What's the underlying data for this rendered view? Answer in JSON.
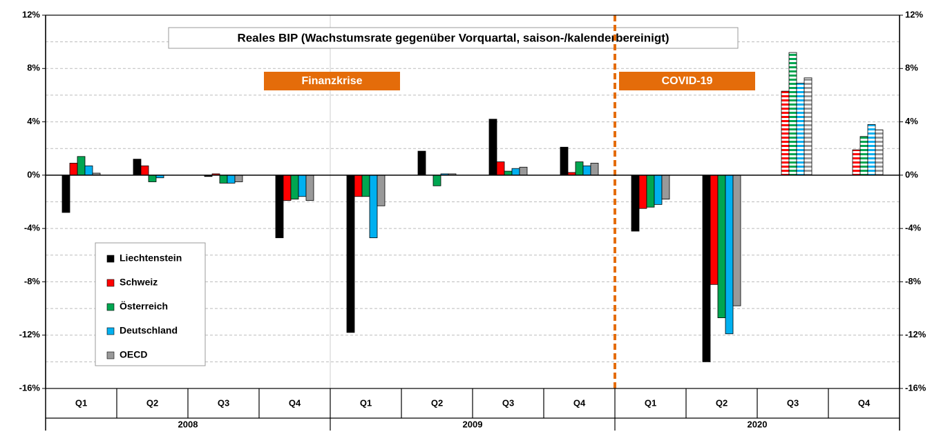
{
  "chart_data": {
    "type": "bar",
    "title": "Reales BIP (Wachstumsrate gegenüber Vorquartal, saison-/kalenderbereinigt)",
    "annotations": [
      "Finanzkrise",
      "COVID-19"
    ],
    "categories": [
      "Q1",
      "Q2",
      "Q3",
      "Q4",
      "Q1",
      "Q2",
      "Q3",
      "Q4",
      "Q1",
      "Q2",
      "Q3",
      "Q4"
    ],
    "category_groups": [
      "2008",
      "2009",
      "2020"
    ],
    "hatched": [
      false,
      false,
      false,
      false,
      false,
      false,
      false,
      false,
      false,
      false,
      true,
      true
    ],
    "series": [
      {
        "name": "Liechtenstein",
        "color": "#000000",
        "values": [
          -2.8,
          1.2,
          -0.1,
          -4.7,
          -11.8,
          1.8,
          4.2,
          2.1,
          -4.2,
          -14.0,
          null,
          null
        ]
      },
      {
        "name": "Schweiz",
        "color": "#ff0000",
        "values": [
          0.9,
          0.7,
          0.1,
          -1.9,
          -1.6,
          0.0,
          1.0,
          0.2,
          -2.5,
          -8.2,
          6.3,
          1.9
        ]
      },
      {
        "name": "Österreich",
        "color": "#00a651",
        "values": [
          1.4,
          -0.5,
          -0.6,
          -1.8,
          -1.6,
          -0.8,
          0.3,
          1.0,
          -2.4,
          -10.7,
          9.2,
          2.9
        ]
      },
      {
        "name": "Deutschland",
        "color": "#00b0f0",
        "values": [
          0.7,
          -0.2,
          -0.6,
          -1.6,
          -4.7,
          0.1,
          0.5,
          0.7,
          -2.2,
          -11.9,
          6.9,
          3.8
        ]
      },
      {
        "name": "OECD",
        "color": "#999999",
        "values": [
          0.15,
          0.0,
          -0.5,
          -1.9,
          -2.3,
          0.1,
          0.6,
          0.9,
          -1.8,
          -9.8,
          7.3,
          3.4
        ]
      }
    ],
    "ylim": [
      -16,
      12
    ],
    "yticks": [
      {
        "value": -16,
        "label": "-16%"
      },
      {
        "value": -12,
        "label": "-12%"
      },
      {
        "value": -8,
        "label": "-8%"
      },
      {
        "value": -4,
        "label": "-4%"
      },
      {
        "value": 0,
        "label": "0%"
      },
      {
        "value": 4,
        "label": "4%"
      },
      {
        "value": 8,
        "label": "8%"
      },
      {
        "value": 12,
        "label": "12%"
      }
    ],
    "minor_yticks": [
      -14,
      -10,
      -6,
      -2,
      2,
      6,
      10
    ],
    "grid": true,
    "legend_position": "lower left"
  }
}
